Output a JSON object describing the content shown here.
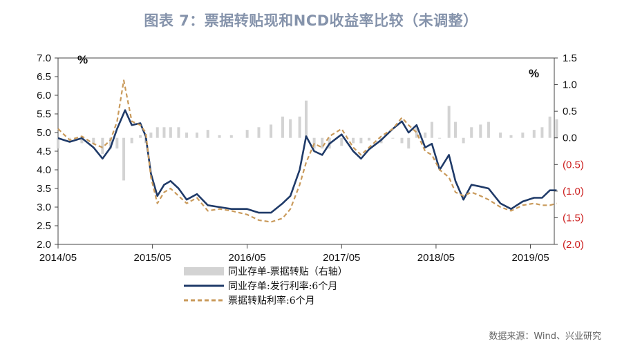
{
  "title": "图表 7：票据转贴现和NCD收益率比较（未调整）",
  "source": "数据来源：Wind、兴业研究",
  "colors": {
    "ncd": "#1f3a68",
    "bill": "#c99a5b",
    "spread": "#d3d3d3",
    "negative_label": "#cc1f1f",
    "title": "#8593ab"
  },
  "chart_data": {
    "type": "line",
    "title": "图表 7：票据转贴现和NCD收益率比较（未调整）",
    "x_ticks": [
      "2014/05",
      "2015/05",
      "2016/05",
      "2017/05",
      "2018/05",
      "2019/05"
    ],
    "x_range": [
      "2014/05",
      "2019/08"
    ],
    "y_left": {
      "unit": "%",
      "min": 2.0,
      "max": 7.0,
      "ticks": [
        "2.0",
        "2.5",
        "3.0",
        "3.5",
        "4.0",
        "4.5",
        "5.0",
        "5.5",
        "6.0",
        "6.5",
        "7.0"
      ]
    },
    "y_right": {
      "unit": "%",
      "min": -2.0,
      "max": 1.5,
      "ticks": [
        "(2.0)",
        "(1.5)",
        "(1.0)",
        "(0.5)",
        "0.0",
        "0.5",
        "1.0",
        "1.5"
      ]
    },
    "legend": [
      "同业存单-票据转贴（右轴）",
      "同业存单:发行利率:6个月",
      "票据转贴利率:6个月"
    ],
    "series": [
      {
        "name": "同业存单:发行利率:6个月",
        "axis": "left",
        "style": "solid",
        "points": [
          [
            "2014-05-01",
            4.85
          ],
          [
            "2014-06-15",
            4.75
          ],
          [
            "2014-08-01",
            4.85
          ],
          [
            "2014-09-15",
            4.6
          ],
          [
            "2014-10-20",
            4.3
          ],
          [
            "2014-11-20",
            4.6
          ],
          [
            "2014-12-15",
            5.1
          ],
          [
            "2015-01-15",
            5.6
          ],
          [
            "2015-02-10",
            5.2
          ],
          [
            "2015-03-15",
            5.25
          ],
          [
            "2015-04-05",
            4.9
          ],
          [
            "2015-04-25",
            3.9
          ],
          [
            "2015-05-20",
            3.3
          ],
          [
            "2015-06-15",
            3.6
          ],
          [
            "2015-07-10",
            3.7
          ],
          [
            "2015-08-10",
            3.5
          ],
          [
            "2015-09-10",
            3.2
          ],
          [
            "2015-10-20",
            3.35
          ],
          [
            "2015-12-01",
            3.05
          ],
          [
            "2016-01-15",
            3.0
          ],
          [
            "2016-03-01",
            2.95
          ],
          [
            "2016-05-01",
            2.95
          ],
          [
            "2016-06-15",
            2.85
          ],
          [
            "2016-08-01",
            2.85
          ],
          [
            "2016-09-15",
            3.1
          ],
          [
            "2016-10-15",
            3.3
          ],
          [
            "2016-11-20",
            4.0
          ],
          [
            "2016-12-15",
            4.9
          ],
          [
            "2017-01-15",
            4.5
          ],
          [
            "2017-02-15",
            4.4
          ],
          [
            "2017-03-15",
            4.7
          ],
          [
            "2017-05-01",
            4.95
          ],
          [
            "2017-06-15",
            4.5
          ],
          [
            "2017-07-15",
            4.3
          ],
          [
            "2017-08-15",
            4.55
          ],
          [
            "2017-10-01",
            4.8
          ],
          [
            "2017-11-15",
            5.1
          ],
          [
            "2017-12-20",
            5.3
          ],
          [
            "2018-01-15",
            5.0
          ],
          [
            "2018-02-15",
            5.2
          ],
          [
            "2018-03-20",
            4.6
          ],
          [
            "2018-04-15",
            4.7
          ],
          [
            "2018-05-15",
            4.0
          ],
          [
            "2018-06-20",
            4.4
          ],
          [
            "2018-07-15",
            3.7
          ],
          [
            "2018-08-15",
            3.2
          ],
          [
            "2018-09-15",
            3.6
          ],
          [
            "2018-10-20",
            3.55
          ],
          [
            "2018-11-20",
            3.5
          ],
          [
            "2019-01-05",
            3.1
          ],
          [
            "2019-02-15",
            2.95
          ],
          [
            "2019-04-01",
            3.15
          ],
          [
            "2019-05-15",
            3.25
          ],
          [
            "2019-06-15",
            3.25
          ],
          [
            "2019-07-15",
            3.45
          ],
          [
            "2019-08-10",
            3.45
          ]
        ]
      },
      {
        "name": "票据转贴利率:6个月",
        "axis": "left",
        "style": "dashed",
        "points": [
          [
            "2014-05-01",
            5.1
          ],
          [
            "2014-06-15",
            4.8
          ],
          [
            "2014-08-01",
            4.9
          ],
          [
            "2014-09-15",
            4.7
          ],
          [
            "2014-10-20",
            4.6
          ],
          [
            "2014-11-20",
            4.8
          ],
          [
            "2014-12-15",
            5.3
          ],
          [
            "2015-01-10",
            6.4
          ],
          [
            "2015-02-10",
            5.3
          ],
          [
            "2015-03-15",
            5.2
          ],
          [
            "2015-04-05",
            5.0
          ],
          [
            "2015-04-25",
            3.8
          ],
          [
            "2015-05-20",
            3.1
          ],
          [
            "2015-06-15",
            3.4
          ],
          [
            "2015-07-10",
            3.5
          ],
          [
            "2015-08-10",
            3.3
          ],
          [
            "2015-09-10",
            3.1
          ],
          [
            "2015-10-20",
            3.25
          ],
          [
            "2015-12-01",
            2.9
          ],
          [
            "2016-01-15",
            2.95
          ],
          [
            "2016-03-01",
            2.9
          ],
          [
            "2016-05-01",
            2.8
          ],
          [
            "2016-06-15",
            2.65
          ],
          [
            "2016-08-01",
            2.6
          ],
          [
            "2016-09-15",
            2.7
          ],
          [
            "2016-10-15",
            2.95
          ],
          [
            "2016-11-20",
            3.6
          ],
          [
            "2016-12-15",
            4.2
          ],
          [
            "2017-01-15",
            4.7
          ],
          [
            "2017-02-15",
            4.6
          ],
          [
            "2017-03-15",
            4.9
          ],
          [
            "2017-05-01",
            5.1
          ],
          [
            "2017-06-15",
            4.6
          ],
          [
            "2017-07-15",
            4.4
          ],
          [
            "2017-08-15",
            4.6
          ],
          [
            "2017-10-01",
            4.9
          ],
          [
            "2017-11-15",
            5.1
          ],
          [
            "2017-12-20",
            5.4
          ],
          [
            "2018-01-15",
            5.2
          ],
          [
            "2018-02-15",
            5.0
          ],
          [
            "2018-03-20",
            4.5
          ],
          [
            "2018-04-15",
            4.4
          ],
          [
            "2018-05-15",
            4.0
          ],
          [
            "2018-06-20",
            3.8
          ],
          [
            "2018-07-15",
            3.4
          ],
          [
            "2018-08-15",
            3.3
          ],
          [
            "2018-09-15",
            3.4
          ],
          [
            "2018-10-20",
            3.3
          ],
          [
            "2018-11-20",
            3.2
          ],
          [
            "2019-01-05",
            3.0
          ],
          [
            "2019-02-15",
            2.9
          ],
          [
            "2019-04-01",
            3.05
          ],
          [
            "2019-05-15",
            3.1
          ],
          [
            "2019-06-15",
            3.05
          ],
          [
            "2019-07-15",
            3.05
          ],
          [
            "2019-08-10",
            3.1
          ]
        ]
      },
      {
        "name": "同业存单-票据转贴（右轴）",
        "axis": "right",
        "style": "bar",
        "points": [
          [
            "2014-05-01",
            -0.2
          ],
          [
            "2014-06-15",
            0.0
          ],
          [
            "2014-08-01",
            -0.1
          ],
          [
            "2014-09-15",
            -0.1
          ],
          [
            "2014-10-20",
            -0.3
          ],
          [
            "2014-11-20",
            -0.2
          ],
          [
            "2014-12-15",
            -0.2
          ],
          [
            "2015-01-10",
            -0.8
          ],
          [
            "2015-02-10",
            -0.1
          ],
          [
            "2015-03-15",
            0.05
          ],
          [
            "2015-04-05",
            -0.1
          ],
          [
            "2015-04-25",
            0.1
          ],
          [
            "2015-05-20",
            0.2
          ],
          [
            "2015-06-15",
            0.2
          ],
          [
            "2015-07-10",
            0.2
          ],
          [
            "2015-08-10",
            0.2
          ],
          [
            "2015-09-10",
            0.1
          ],
          [
            "2015-10-20",
            0.1
          ],
          [
            "2015-12-01",
            0.15
          ],
          [
            "2016-01-15",
            0.05
          ],
          [
            "2016-03-01",
            0.05
          ],
          [
            "2016-05-01",
            0.15
          ],
          [
            "2016-06-15",
            0.2
          ],
          [
            "2016-08-01",
            0.25
          ],
          [
            "2016-09-15",
            0.4
          ],
          [
            "2016-10-15",
            0.35
          ],
          [
            "2016-11-20",
            0.4
          ],
          [
            "2016-12-15",
            0.7
          ],
          [
            "2017-01-15",
            -0.2
          ],
          [
            "2017-02-15",
            -0.2
          ],
          [
            "2017-03-15",
            -0.2
          ],
          [
            "2017-05-01",
            -0.15
          ],
          [
            "2017-06-15",
            -0.1
          ],
          [
            "2017-07-15",
            -0.1
          ],
          [
            "2017-08-15",
            -0.05
          ],
          [
            "2017-10-01",
            -0.1
          ],
          [
            "2017-11-15",
            0.0
          ],
          [
            "2017-12-20",
            -0.1
          ],
          [
            "2018-01-15",
            -0.2
          ],
          [
            "2018-02-15",
            0.2
          ],
          [
            "2018-03-20",
            0.1
          ],
          [
            "2018-04-15",
            0.3
          ],
          [
            "2018-05-15",
            0.0
          ],
          [
            "2018-06-20",
            0.6
          ],
          [
            "2018-07-15",
            0.3
          ],
          [
            "2018-08-15",
            -0.1
          ],
          [
            "2018-09-15",
            0.2
          ],
          [
            "2018-10-20",
            0.25
          ],
          [
            "2018-11-20",
            0.3
          ],
          [
            "2019-01-05",
            0.1
          ],
          [
            "2019-02-15",
            0.05
          ],
          [
            "2019-04-01",
            0.1
          ],
          [
            "2019-05-15",
            0.15
          ],
          [
            "2019-06-15",
            0.2
          ],
          [
            "2019-07-15",
            0.4
          ],
          [
            "2019-08-10",
            0.35
          ]
        ]
      }
    ]
  }
}
